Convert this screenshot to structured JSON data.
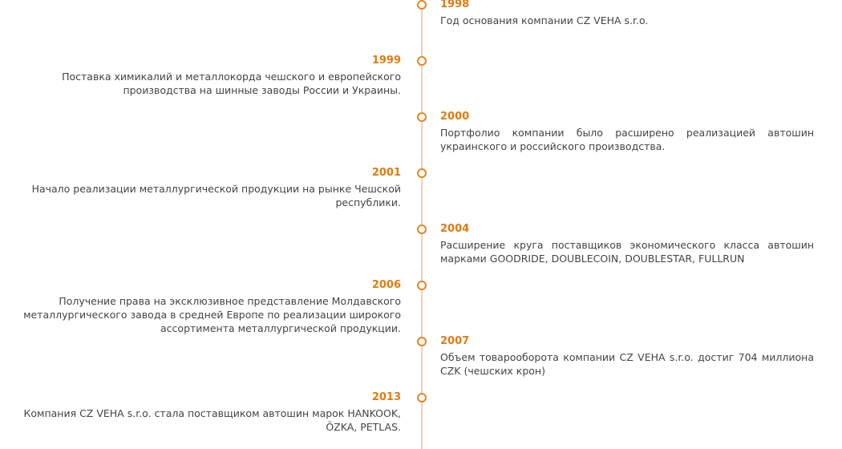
{
  "timeline": [
    {
      "year": "1998",
      "text": "Год основания компании CZ VEHA s.r.o."
    },
    {
      "year": "1999",
      "text": "Поставка химикалий и металлокорда чешского и европейского производства на шинные заводы России и Украины."
    },
    {
      "year": "2000",
      "text": "Портфолио компании было расширено  реализацией автошин украинского и российского производства."
    },
    {
      "year": "2001",
      "text": "Начало реализации металлургической продукции на рынке Чешской республики."
    },
    {
      "year": "2004",
      "text": "Расширение круга поставщиков экономического класса автошин марками GOODRIDE, DOUBLECOIN, DOUBLESTAR, FULLRUN"
    },
    {
      "year": "2006",
      "text": "Получение права на эксклюзивное представление Молдавского металлургического завода в средней Европе по реализации широкого ассортимента металлургической продукции."
    },
    {
      "year": "2007",
      "text": "Объем товарооборота компании CZ VEHA s.r.o. достиг 704 миллиона CZK (чешских крон)"
    },
    {
      "year": "2013",
      "text": "Компания CZ VEHA s.r.o. стала поставщиком автошин марок HANKOOK, ÖZKA, PETLAS."
    }
  ]
}
